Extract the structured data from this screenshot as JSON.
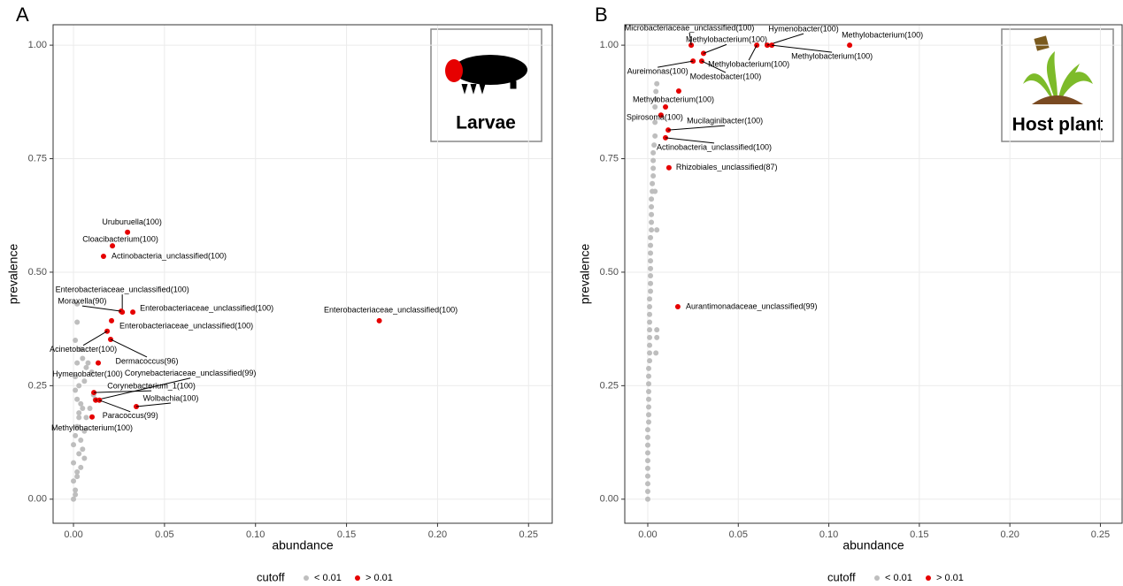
{
  "chart_data": [
    {
      "type": "scatter",
      "panel_label": "A",
      "inset_label": "Larvae",
      "x_label": "abundance",
      "y_label": "prevalence",
      "legend_title": "cutoff",
      "legend_position": "bottom",
      "grid": true,
      "xlim": [
        -0.0112,
        0.263
      ],
      "ylim": [
        -0.053,
        1.045
      ],
      "xticks": [
        {
          "value": 0,
          "label": "0.00"
        },
        {
          "value": 0.05,
          "label": "0.05"
        },
        {
          "value": 0.1,
          "label": "0.10"
        },
        {
          "value": 0.15,
          "label": "0.15"
        },
        {
          "value": 0.2,
          "label": "0.20"
        },
        {
          "value": 0.25,
          "label": "0.25"
        }
      ],
      "yticks": [
        {
          "value": 0,
          "label": "0.00"
        },
        {
          "value": 0.25,
          "label": "0.25"
        },
        {
          "value": 0.5,
          "label": "0.50"
        },
        {
          "value": 0.75,
          "label": "0.75"
        },
        {
          "value": 1,
          "label": "1.00"
        }
      ],
      "series": [
        {
          "name": "< 0.01",
          "color": "#bebebe",
          "x": [
            0.002,
            0.002,
            0.001,
            0.004,
            0.005,
            0.007,
            0.008,
            0.01,
            0.006,
            0.003,
            0.001,
            0.002,
            0.004,
            0.005,
            0.009,
            0.012,
            0.011,
            0.003,
            0.002,
            0.001,
            0,
            0,
            0,
            0.001,
            0.002,
            0.003,
            0.004,
            0.006,
            0.007,
            0.002,
            0.001,
            0.003,
            0.005,
            0,
            0.001,
            0.002,
            0.004,
            0.006
          ],
          "values": [
            0.43,
            0.39,
            0.35,
            0.33,
            0.31,
            0.29,
            0.3,
            0.28,
            0.26,
            0.25,
            0.24,
            0.22,
            0.21,
            0.2,
            0.2,
            0.22,
            0.23,
            0.18,
            0.16,
            0.14,
            0.12,
            0.08,
            0.04,
            0.02,
            0.06,
            0.1,
            0.13,
            0.15,
            0.18,
            0.3,
            0.27,
            0.19,
            0.11,
            0,
            0.01,
            0.05,
            0.07,
            0.09
          ]
        },
        {
          "name": "> 0.01",
          "color": "#e60000",
          "x": [
            0.0297,
            0.0214,
            0.0165,
            0.0268,
            0.0262,
            0.0326,
            0.0209,
            0.168,
            0.0185,
            0.0204,
            0.0136,
            0.0122,
            0.0112,
            0.0345,
            0.0142,
            0.0102
          ],
          "values": [
            0.588,
            0.558,
            0.535,
            0.412,
            0.414,
            0.412,
            0.393,
            0.393,
            0.37,
            0.352,
            0.3,
            0.218,
            0.235,
            0.204,
            0.218,
            0.181
          ],
          "labels": [
            "Uruburuella(100)",
            "Cloacibacterium(100)",
            "Actinobacteria_unclassified(100)",
            "Enterobacteriaceae_unclassified(100)",
            "Moraxella(90)",
            "Enterobacteriaceae_unclassified(100)",
            "Enterobacteriaceae_unclassified(100)",
            "Enterobacteriaceae_unclassified(100)",
            "Acinetobacter(100)",
            "Dermacoccus(96)",
            "Hymenobacter(100)",
            "Corynebacteriaceae_unclassified(99)",
            "Corynebacterium_1(100)",
            "Wolbachia(100)",
            "Paracoccus(99)",
            "Methylobacterium(100)"
          ]
        }
      ]
    },
    {
      "type": "scatter",
      "panel_label": "B",
      "inset_label": "Host plant",
      "x_label": "abundance",
      "y_label": "prevalence",
      "legend_title": "cutoff",
      "legend_position": "bottom",
      "grid": true,
      "xlim": [
        -0.0127,
        0.262
      ],
      "ylim": [
        -0.053,
        1.045
      ],
      "xticks": [
        {
          "value": 0,
          "label": "0.00"
        },
        {
          "value": 0.05,
          "label": "0.05"
        },
        {
          "value": 0.1,
          "label": "0.10"
        },
        {
          "value": 0.15,
          "label": "0.15"
        },
        {
          "value": 0.2,
          "label": "0.20"
        },
        {
          "value": 0.25,
          "label": "0.25"
        }
      ],
      "yticks": [
        {
          "value": 0,
          "label": "0.00"
        },
        {
          "value": 0.25,
          "label": "0.25"
        },
        {
          "value": 0.5,
          "label": "0.50"
        },
        {
          "value": 0.75,
          "label": "0.75"
        },
        {
          "value": 1,
          "label": "1.00"
        }
      ],
      "series": [
        {
          "name": "< 0.01",
          "color": "#bebebe",
          "x": [
            0,
            0,
            0,
            0,
            0,
            0,
            0,
            0,
            0,
            0,
            0.0005,
            0.0005,
            0.0005,
            0.0005,
            0.0005,
            0.0005,
            0.0005,
            0.0005,
            0.001,
            0.001,
            0.001,
            0.001,
            0.001,
            0.001,
            0.001,
            0.001,
            0.001,
            0.0015,
            0.0015,
            0.0015,
            0.0015,
            0.0015,
            0.0015,
            0.0015,
            0.0015,
            0.002,
            0.002,
            0.002,
            0.002,
            0.002,
            0.0025,
            0.0025,
            0.003,
            0.003,
            0.003,
            0.003,
            0.0035,
            0.004,
            0.004,
            0.004,
            0.0045,
            0.0045,
            0.005,
            0.005,
            0.004,
            0.005,
            0.005,
            0.0045
          ],
          "values": [
            0,
            0.017,
            0.034,
            0.051,
            0.068,
            0.085,
            0.102,
            0.119,
            0.136,
            0.153,
            0.17,
            0.186,
            0.203,
            0.22,
            0.237,
            0.254,
            0.271,
            0.288,
            0.305,
            0.322,
            0.339,
            0.356,
            0.373,
            0.39,
            0.407,
            0.424,
            0.441,
            0.458,
            0.475,
            0.492,
            0.508,
            0.525,
            0.542,
            0.559,
            0.576,
            0.593,
            0.61,
            0.627,
            0.644,
            0.661,
            0.678,
            0.695,
            0.712,
            0.729,
            0.746,
            0.763,
            0.78,
            0.8,
            0.83,
            0.864,
            0.881,
            0.898,
            0.915,
            0.593,
            0.678,
            0.373,
            0.356,
            0.322
          ]
        },
        {
          "name": "> 0.01",
          "color": "#e60000",
          "x": [
            0.024,
            0.0308,
            0.0602,
            0.066,
            0.0685,
            0.1115,
            0.025,
            0.0298,
            0.0171,
            0.0098,
            0.0073,
            0.0113,
            0.0098,
            0.0117,
            0.0166
          ],
          "values": [
            1,
            0.982,
            1,
            1,
            1,
            1,
            0.965,
            0.965,
            0.899,
            0.864,
            0.846,
            0.813,
            0.796,
            0.73,
            0.424
          ],
          "labels": [
            "Microbacteriaceae_unclassified(100)",
            "Methylobacterium(100)",
            "Methylobacterium(100)",
            "Hymenobacter(100)",
            "Methylobacterium(100)",
            "Methylobacterium(100)",
            "Aureimonas(100)",
            "Modestobacter(100)",
            null,
            "Methylobacterium(100)",
            "Spirosoma(100)",
            "Mucilaginibacter(100)",
            "Actinobacteria_unclassified(100)",
            "Rhizobiales_unclassified(87)",
            "Aurantimonadaceae_unclassified(99)"
          ]
        }
      ]
    }
  ]
}
